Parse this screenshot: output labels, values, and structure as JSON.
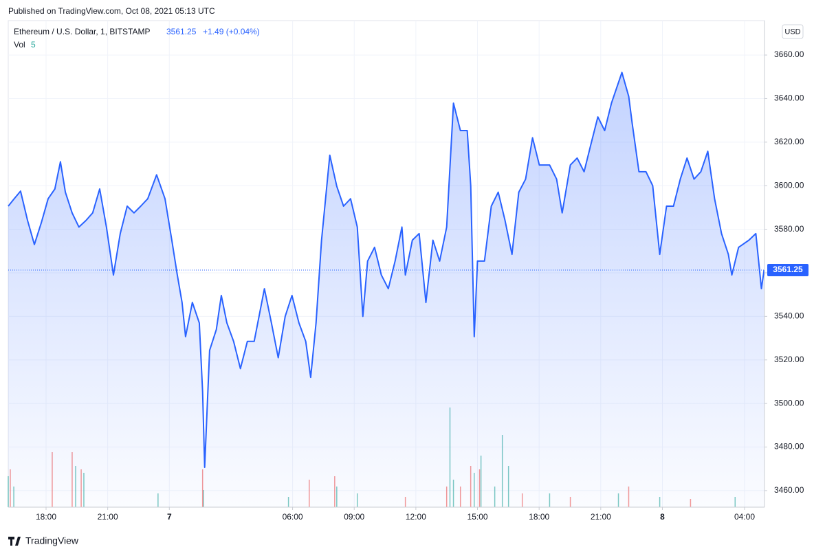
{
  "header": {
    "published": "Published on TradingView.com, Oct 08, 2021 05:13 UTC",
    "symbol": "Ethereum / U.S. Dollar, 1, BITSTAMP",
    "price": "3561.25",
    "change": "+1.49 (+0.04%)",
    "volume_label": "Vol",
    "volume_value": "5",
    "currency": "USD"
  },
  "footer": {
    "brand": "TradingView"
  },
  "chart_data": {
    "type": "area",
    "color": "#2962ff",
    "grid": true,
    "x": [
      16.16,
      16.43,
      16.76,
      17.1,
      17.43,
      17.77,
      18.1,
      18.43,
      18.7,
      18.94,
      19.27,
      19.6,
      19.94,
      20.27,
      20.61,
      20.94,
      21.28,
      21.61,
      21.95,
      22.28,
      22.61,
      22.95,
      23.38,
      23.79,
      24.12,
      24.39,
      24.62,
      24.79,
      25.12,
      25.46,
      25.62,
      25.72,
      25.96,
      26.29,
      26.53,
      26.8,
      27.13,
      27.46,
      27.8,
      28.13,
      28.63,
      28.97,
      29.3,
      29.64,
      29.97,
      30.31,
      30.64,
      30.88,
      31.14,
      31.41,
      31.81,
      32.15,
      32.48,
      32.82,
      33.15,
      33.42,
      33.65,
      33.99,
      34.32,
      34.66,
      34.99,
      35.32,
      35.49,
      35.83,
      36.16,
      36.49,
      36.83,
      37.16,
      37.5,
      37.83,
      38.17,
      38.5,
      38.67,
      38.84,
      39.0,
      39.34,
      39.67,
      40.01,
      40.34,
      40.68,
      41.01,
      41.34,
      41.68,
      42.01,
      42.51,
      42.85,
      43.12,
      43.52,
      43.85,
      44.19,
      44.52,
      44.86,
      45.19,
      45.52,
      46.03,
      46.36,
      46.53,
      46.86,
      47.2,
      47.53,
      47.87,
      48.2,
      48.54,
      48.87,
      49.2,
      49.54,
      49.87,
      50.21,
      50.54,
      50.88,
      51.21,
      51.38,
      51.71,
      52.21,
      52.55,
      52.82,
      52.95
    ],
    "values": [
      3590.6,
      3593.8,
      3597.5,
      3584,
      3573,
      3583,
      3594,
      3598.5,
      3611,
      3597,
      3587.5,
      3581,
      3584,
      3587.5,
      3598.5,
      3581,
      3559,
      3578,
      3590.6,
      3587.5,
      3590.6,
      3594,
      3605,
      3594,
      3575,
      3559,
      3546.4,
      3530.7,
      3546.4,
      3537,
      3505.4,
      3470.7,
      3524.4,
      3534,
      3549.6,
      3537,
      3528.5,
      3516,
      3528.5,
      3528.5,
      3552.7,
      3537,
      3521,
      3540,
      3549.6,
      3537,
      3528.5,
      3512,
      3537,
      3575,
      3614,
      3599.8,
      3590.6,
      3594,
      3581,
      3540,
      3565.4,
      3571.7,
      3559,
      3552.7,
      3565.4,
      3581,
      3559,
      3575,
      3578,
      3546.4,
      3575,
      3565.4,
      3581,
      3637.9,
      3625.3,
      3625.3,
      3600,
      3530.7,
      3565.4,
      3565.4,
      3590.6,
      3597,
      3584,
      3568.5,
      3597,
      3603,
      3622,
      3609.5,
      3609.5,
      3603,
      3587.5,
      3609.5,
      3612.7,
      3606.4,
      3619,
      3631.6,
      3625.3,
      3637.9,
      3652,
      3641,
      3628.5,
      3606.4,
      3606.4,
      3600,
      3568.5,
      3590.6,
      3590.6,
      3603,
      3612.7,
      3603,
      3606.4,
      3615.8,
      3594,
      3578,
      3568.5,
      3559,
      3571.7,
      3575,
      3578,
      3552.7,
      3561.25
    ],
    "xlim": [
      16.16,
      52.97
    ],
    "ylim": [
      3452.4,
      3675.8
    ],
    "yticks": [
      {
        "value": 3460,
        "label": "3460.00"
      },
      {
        "value": 3480,
        "label": "3480.00"
      },
      {
        "value": 3500,
        "label": "3500.00"
      },
      {
        "value": 3520,
        "label": "3520.00"
      },
      {
        "value": 3540,
        "label": "3540.00"
      },
      {
        "value": 3560,
        "label": "3560.00"
      },
      {
        "value": 3580,
        "label": "3580.00"
      },
      {
        "value": 3600,
        "label": "3600.00"
      },
      {
        "value": 3620,
        "label": "3620.00"
      },
      {
        "value": 3640,
        "label": "3640.00"
      },
      {
        "value": 3660,
        "label": "3660.00"
      }
    ],
    "xticks": [
      {
        "value": 18,
        "label": "18:00"
      },
      {
        "value": 21,
        "label": "21:00"
      },
      {
        "value": 24,
        "label": "7"
      },
      {
        "value": 30,
        "label": "06:00"
      },
      {
        "value": 33,
        "label": "09:00"
      },
      {
        "value": 36,
        "label": "12:00"
      },
      {
        "value": 39,
        "label": "15:00"
      },
      {
        "value": 42,
        "label": "18:00"
      },
      {
        "value": 45,
        "label": "21:00"
      },
      {
        "value": 48,
        "label": "8"
      },
      {
        "value": 52,
        "label": "04:00"
      }
    ],
    "volume_up": {
      "color": "#26a69a",
      "x": [
        16.16,
        16.43,
        19.44,
        19.84,
        23.45,
        25.66,
        29.8,
        32.15,
        33.15,
        37.66,
        37.83,
        38.84,
        39.17,
        39.84,
        40.21,
        40.51,
        42.51,
        45.86,
        47.87,
        51.54
      ],
      "values": [
        45,
        30,
        60,
        50,
        20,
        25,
        15,
        30,
        20,
        145,
        40,
        50,
        75,
        30,
        105,
        60,
        20,
        20,
        15,
        15
      ]
    },
    "volume_down": {
      "color": "#ef5350",
      "x": [
        16.26,
        18.3,
        19.27,
        19.71,
        25.62,
        30.81,
        32.05,
        35.49,
        37.5,
        38.17,
        38.67,
        39.1,
        41.18,
        43.52,
        46.36,
        49.37
      ],
      "values": [
        55,
        80,
        80,
        55,
        55,
        40,
        45,
        15,
        30,
        30,
        60,
        55,
        20,
        15,
        30,
        12
      ]
    }
  }
}
